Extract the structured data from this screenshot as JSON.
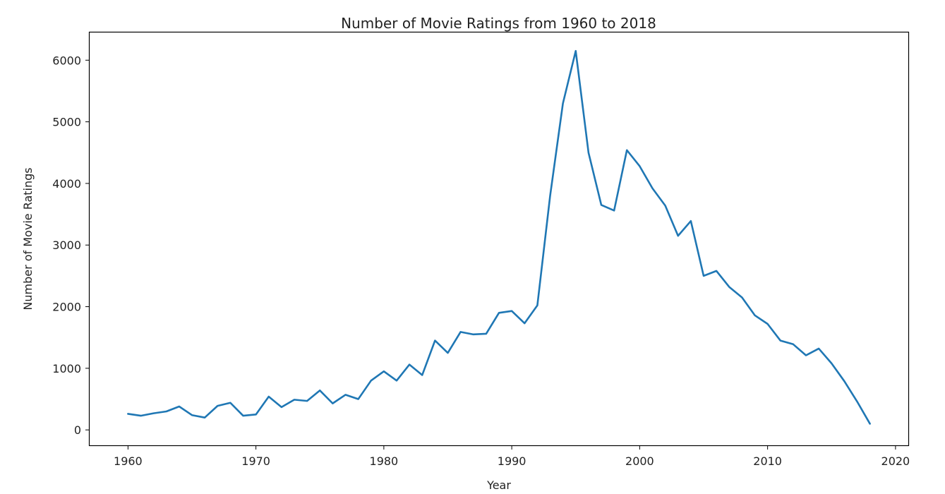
{
  "chart_data": {
    "type": "line",
    "title": "Number of Movie Ratings from 1960 to 2018",
    "xlabel": "Year",
    "ylabel": "Number of Movie Ratings",
    "xlim": [
      1957,
      2021
    ],
    "ylim": [
      -250,
      6450
    ],
    "xticks": [
      1960,
      1970,
      1980,
      1990,
      2000,
      2010,
      2020
    ],
    "yticks": [
      0,
      1000,
      2000,
      3000,
      4000,
      5000,
      6000
    ],
    "grid": false,
    "series": [
      {
        "color": "#1f77b4",
        "x": [
          1960,
          1961,
          1962,
          1963,
          1964,
          1965,
          1966,
          1967,
          1968,
          1969,
          1970,
          1971,
          1972,
          1973,
          1974,
          1975,
          1976,
          1977,
          1978,
          1979,
          1980,
          1981,
          1982,
          1983,
          1984,
          1985,
          1986,
          1987,
          1988,
          1989,
          1990,
          1991,
          1992,
          1993,
          1994,
          1995,
          1996,
          1997,
          1998,
          1999,
          2000,
          2001,
          2002,
          2003,
          2004,
          2005,
          2006,
          2007,
          2008,
          2009,
          2010,
          2011,
          2012,
          2013,
          2014,
          2015,
          2016,
          2017,
          2018
        ],
        "y": [
          260,
          230,
          270,
          300,
          380,
          240,
          200,
          390,
          440,
          230,
          250,
          540,
          370,
          490,
          470,
          640,
          430,
          570,
          500,
          800,
          950,
          800,
          1060,
          890,
          1450,
          1250,
          1590,
          1550,
          1560,
          1900,
          1930,
          1730,
          2020,
          3800,
          5300,
          6150,
          4500,
          3650,
          3560,
          4540,
          4280,
          3920,
          3640,
          3150,
          3390,
          2500,
          2580,
          2320,
          2150,
          1860,
          1720,
          1450,
          1390,
          1210,
          1320,
          1080,
          790,
          460,
          100
        ]
      }
    ]
  }
}
